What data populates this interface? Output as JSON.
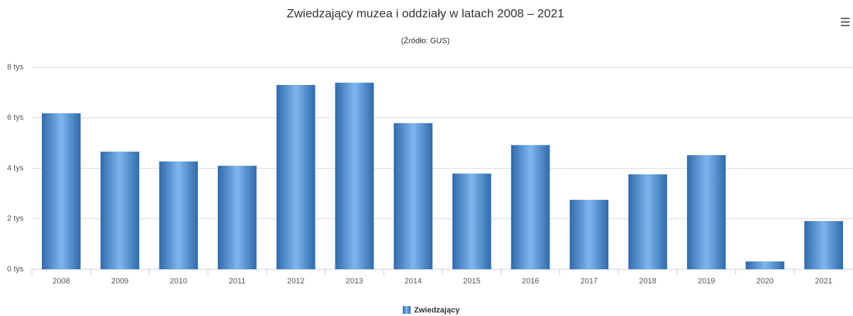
{
  "chart_data": {
    "type": "bar",
    "title": "Zwiedzający muzea i oddziały w latach 2008 – 2021",
    "subtitle": "(Źródło: GUS)",
    "categories": [
      "2008",
      "2009",
      "2010",
      "2011",
      "2012",
      "2013",
      "2014",
      "2015",
      "2016",
      "2017",
      "2018",
      "2019",
      "2020",
      "2021"
    ],
    "series": [
      {
        "name": "Zwiedzający",
        "color": "#2f6aad",
        "values": [
          6180,
          4660,
          4270,
          4100,
          7300,
          7390,
          5790,
          3790,
          4920,
          2750,
          3760,
          4520,
          310,
          1910
        ]
      }
    ],
    "ylim": [
      0,
      8000
    ],
    "yticks": [
      {
        "value": 0,
        "label": "0 tys"
      },
      {
        "value": 2000,
        "label": "2 tys"
      },
      {
        "value": 4000,
        "label": "4 tys"
      },
      {
        "value": 6000,
        "label": "6 tys"
      },
      {
        "value": 8000,
        "label": "8 tys"
      }
    ],
    "grid": true
  }
}
